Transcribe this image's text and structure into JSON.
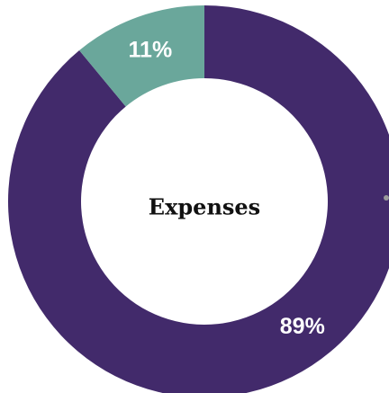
{
  "chart_data": {
    "type": "pie",
    "variant": "donut",
    "center_label": "Expenses",
    "slices": [
      {
        "label": "89%",
        "value": 89,
        "color": "#422a6b"
      },
      {
        "label": "11%",
        "value": 11,
        "color": "#6aa79b"
      }
    ],
    "start": "12 o'clock",
    "direction": "clockwise"
  }
}
